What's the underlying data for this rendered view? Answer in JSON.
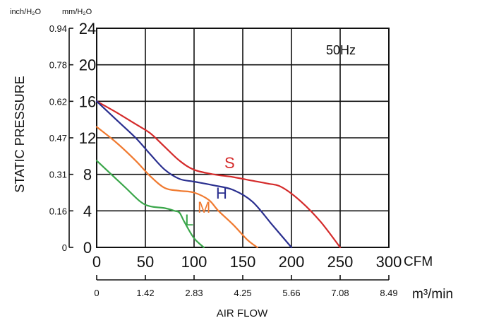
{
  "chart_data": {
    "type": "line",
    "annotation": "50Hz",
    "ylabel": "STATIC PRESSURE",
    "xlabel": "AIR FLOW",
    "y_unit_inch": "inch/H₂O",
    "y_unit_mm": "mm/H₂O",
    "x_unit_cfm": "CFM",
    "x_unit_m3": "m³/min",
    "xlim": [
      0,
      300
    ],
    "ylim": [
      0,
      24
    ],
    "grid": true,
    "x_ticks_cfm": [
      "0",
      "50",
      "100",
      "150",
      "200",
      "250",
      "300"
    ],
    "x_ticks_m3": [
      "0",
      "1.42",
      "2.83",
      "4.25",
      "5.66",
      "7.08",
      "8.49"
    ],
    "y_ticks_mm": [
      "0",
      "4",
      "8",
      "12",
      "16",
      "20",
      "24"
    ],
    "y_ticks_inch": [
      "0",
      "0.16",
      "0.31",
      "0.47",
      "0.62",
      "0.78",
      "0.94"
    ],
    "colors": {
      "S": "#d42a2a",
      "H": "#2a2f8f",
      "M": "#f07a30",
      "L": "#3aa64a"
    },
    "series": [
      {
        "name": "S",
        "label": "S",
        "x": [
          0,
          20,
          40,
          55,
          70,
          85,
          100,
          120,
          140,
          160,
          175,
          190,
          210,
          230,
          250
        ],
        "y": [
          16.0,
          14.8,
          13.5,
          12.5,
          11.0,
          9.5,
          8.5,
          8.0,
          7.7,
          7.3,
          7.0,
          6.6,
          5.0,
          2.8,
          0
        ]
      },
      {
        "name": "H",
        "label": "H",
        "x": [
          0,
          20,
          40,
          55,
          70,
          85,
          100,
          120,
          140,
          160,
          180,
          200
        ],
        "y": [
          16.0,
          14.0,
          12.0,
          10.2,
          8.5,
          7.5,
          7.2,
          6.8,
          6.3,
          5.0,
          2.5,
          0
        ]
      },
      {
        "name": "M",
        "label": "M",
        "x": [
          0,
          20,
          40,
          55,
          70,
          85,
          100,
          115,
          125,
          140,
          155,
          165
        ],
        "y": [
          13.2,
          11.5,
          9.5,
          7.8,
          6.5,
          6.2,
          6.0,
          5.2,
          4.0,
          2.5,
          0.8,
          0
        ]
      },
      {
        "name": "L",
        "label": "L",
        "x": [
          0,
          15,
          30,
          45,
          55,
          70,
          80,
          85,
          90,
          100,
          110
        ],
        "y": [
          9.5,
          8.0,
          6.5,
          5.0,
          4.5,
          4.3,
          4.0,
          3.8,
          2.8,
          1.0,
          0
        ]
      }
    ]
  }
}
